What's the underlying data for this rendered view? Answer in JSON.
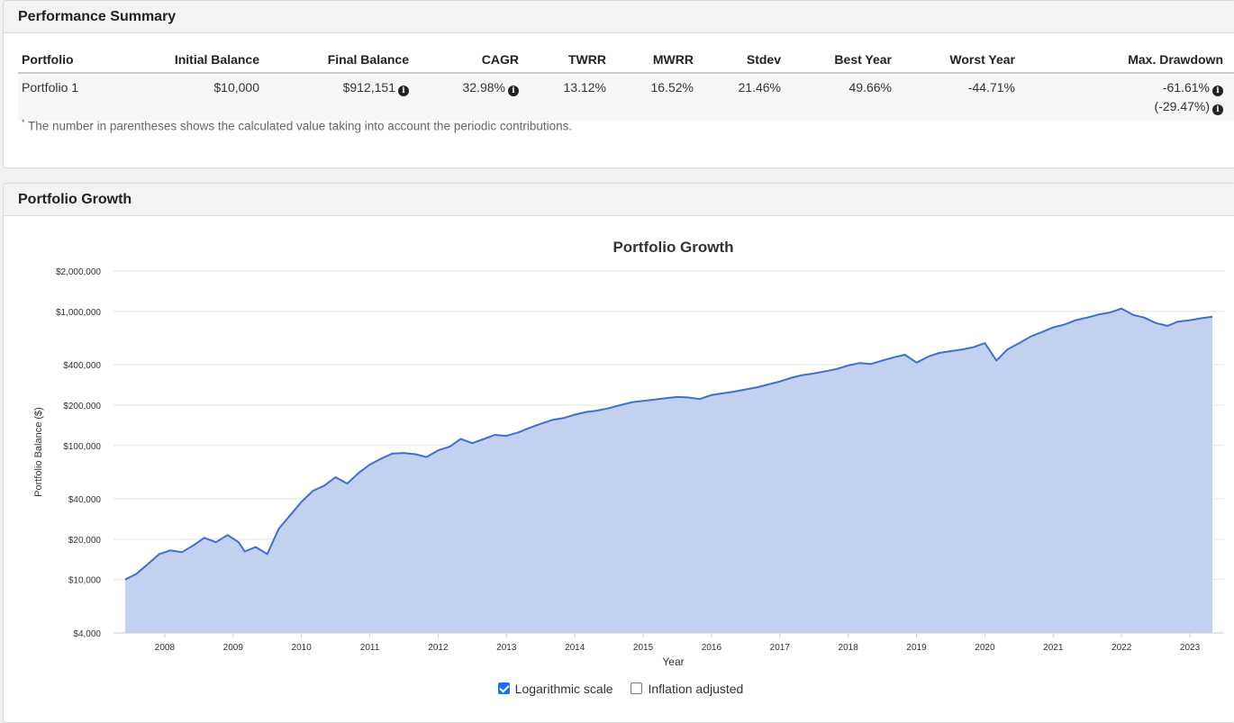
{
  "performance": {
    "title": "Performance Summary",
    "columns": [
      "Portfolio",
      "Initial Balance",
      "Final Balance",
      "CAGR",
      "TWRR",
      "MWRR",
      "Stdev",
      "Best Year",
      "Worst Year",
      "Max. Drawdown"
    ],
    "row": {
      "portfolio": "Portfolio 1",
      "initial_balance": "$10,000",
      "final_balance": "$912,151",
      "cagr": "32.98%",
      "twrr": "13.12%",
      "mwrr": "16.52%",
      "stdev": "21.46%",
      "best_year": "49.66%",
      "worst_year": "-44.71%",
      "max_drawdown": "-61.61%",
      "max_drawdown_contrib": "(-29.47%)"
    },
    "note_marker": "*",
    "note": "The number in parentheses shows the calculated value taking into account the periodic contributions."
  },
  "growth": {
    "title": "Portfolio Growth",
    "controls": {
      "log_scale": "Logarithmic scale",
      "log_scale_checked": true,
      "inflation": "Inflation adjusted",
      "inflation_checked": false
    }
  },
  "chart_data": {
    "type": "area",
    "title": "Portfolio Growth",
    "xlabel": "Year",
    "ylabel": "Portfolio Balance ($)",
    "yscale": "log",
    "ylim": [
      4000,
      2000000
    ],
    "xlim": [
      2007.25,
      2023.5
    ],
    "grid": true,
    "colors": {
      "line": "#3f6fcf",
      "fill": "#c1d1ef",
      "grid": "#e3e3e3"
    },
    "x_ticks": [
      "2008",
      "2009",
      "2010",
      "2011",
      "2012",
      "2013",
      "2014",
      "2015",
      "2016",
      "2017",
      "2018",
      "2019",
      "2020",
      "2021",
      "2022",
      "2023"
    ],
    "y_ticks": [
      {
        "value": 4000,
        "label": "$4,000"
      },
      {
        "value": 10000,
        "label": "$10,000"
      },
      {
        "value": 20000,
        "label": "$20,000"
      },
      {
        "value": 40000,
        "label": "$40,000"
      },
      {
        "value": 100000,
        "label": "$100,000"
      },
      {
        "value": 200000,
        "label": "$200,000"
      },
      {
        "value": 400000,
        "label": "$400,000"
      },
      {
        "value": 1000000,
        "label": "$1,000,000"
      },
      {
        "value": 2000000,
        "label": "$2,000,000"
      }
    ],
    "series": [
      {
        "name": "Portfolio 1",
        "points": [
          [
            2007.42,
            10000
          ],
          [
            2007.58,
            11000
          ],
          [
            2007.75,
            13000
          ],
          [
            2007.92,
            15500
          ],
          [
            2008.08,
            16500
          ],
          [
            2008.25,
            16000
          ],
          [
            2008.42,
            18000
          ],
          [
            2008.58,
            20500
          ],
          [
            2008.75,
            19000
          ],
          [
            2008.92,
            21500
          ],
          [
            2009.08,
            19000
          ],
          [
            2009.17,
            16200
          ],
          [
            2009.33,
            17500
          ],
          [
            2009.5,
            15500
          ],
          [
            2009.67,
            24000
          ],
          [
            2009.83,
            30000
          ],
          [
            2010.0,
            38000
          ],
          [
            2010.17,
            46000
          ],
          [
            2010.33,
            50000
          ],
          [
            2010.5,
            58000
          ],
          [
            2010.67,
            52000
          ],
          [
            2010.83,
            62000
          ],
          [
            2011.0,
            72000
          ],
          [
            2011.17,
            80000
          ],
          [
            2011.33,
            87000
          ],
          [
            2011.5,
            88000
          ],
          [
            2011.67,
            86000
          ],
          [
            2011.83,
            82000
          ],
          [
            2012.0,
            92000
          ],
          [
            2012.17,
            98000
          ],
          [
            2012.33,
            112000
          ],
          [
            2012.5,
            104000
          ],
          [
            2012.67,
            112000
          ],
          [
            2012.83,
            120000
          ],
          [
            2013.0,
            118000
          ],
          [
            2013.17,
            125000
          ],
          [
            2013.33,
            135000
          ],
          [
            2013.5,
            145000
          ],
          [
            2013.67,
            155000
          ],
          [
            2013.83,
            160000
          ],
          [
            2014.0,
            170000
          ],
          [
            2014.17,
            178000
          ],
          [
            2014.33,
            182000
          ],
          [
            2014.5,
            190000
          ],
          [
            2014.67,
            200000
          ],
          [
            2014.83,
            210000
          ],
          [
            2015.0,
            215000
          ],
          [
            2015.17,
            220000
          ],
          [
            2015.33,
            225000
          ],
          [
            2015.5,
            230000
          ],
          [
            2015.67,
            228000
          ],
          [
            2015.83,
            222000
          ],
          [
            2016.0,
            238000
          ],
          [
            2016.17,
            245000
          ],
          [
            2016.33,
            252000
          ],
          [
            2016.5,
            262000
          ],
          [
            2016.67,
            272000
          ],
          [
            2016.83,
            285000
          ],
          [
            2017.0,
            300000
          ],
          [
            2017.17,
            320000
          ],
          [
            2017.33,
            335000
          ],
          [
            2017.5,
            345000
          ],
          [
            2017.67,
            358000
          ],
          [
            2017.83,
            372000
          ],
          [
            2018.0,
            395000
          ],
          [
            2018.17,
            412000
          ],
          [
            2018.33,
            405000
          ],
          [
            2018.5,
            430000
          ],
          [
            2018.67,
            455000
          ],
          [
            2018.83,
            475000
          ],
          [
            2019.0,
            415000
          ],
          [
            2019.17,
            460000
          ],
          [
            2019.33,
            490000
          ],
          [
            2019.5,
            505000
          ],
          [
            2019.67,
            520000
          ],
          [
            2019.83,
            540000
          ],
          [
            2020.0,
            580000
          ],
          [
            2020.17,
            430000
          ],
          [
            2020.33,
            520000
          ],
          [
            2020.5,
            580000
          ],
          [
            2020.67,
            650000
          ],
          [
            2020.83,
            700000
          ],
          [
            2021.0,
            760000
          ],
          [
            2021.17,
            800000
          ],
          [
            2021.33,
            860000
          ],
          [
            2021.5,
            900000
          ],
          [
            2021.67,
            950000
          ],
          [
            2021.83,
            980000
          ],
          [
            2022.0,
            1050000
          ],
          [
            2022.17,
            940000
          ],
          [
            2022.33,
            900000
          ],
          [
            2022.5,
            820000
          ],
          [
            2022.67,
            780000
          ],
          [
            2022.83,
            840000
          ],
          [
            2023.0,
            860000
          ],
          [
            2023.17,
            890000
          ],
          [
            2023.33,
            912151
          ]
        ]
      }
    ]
  }
}
